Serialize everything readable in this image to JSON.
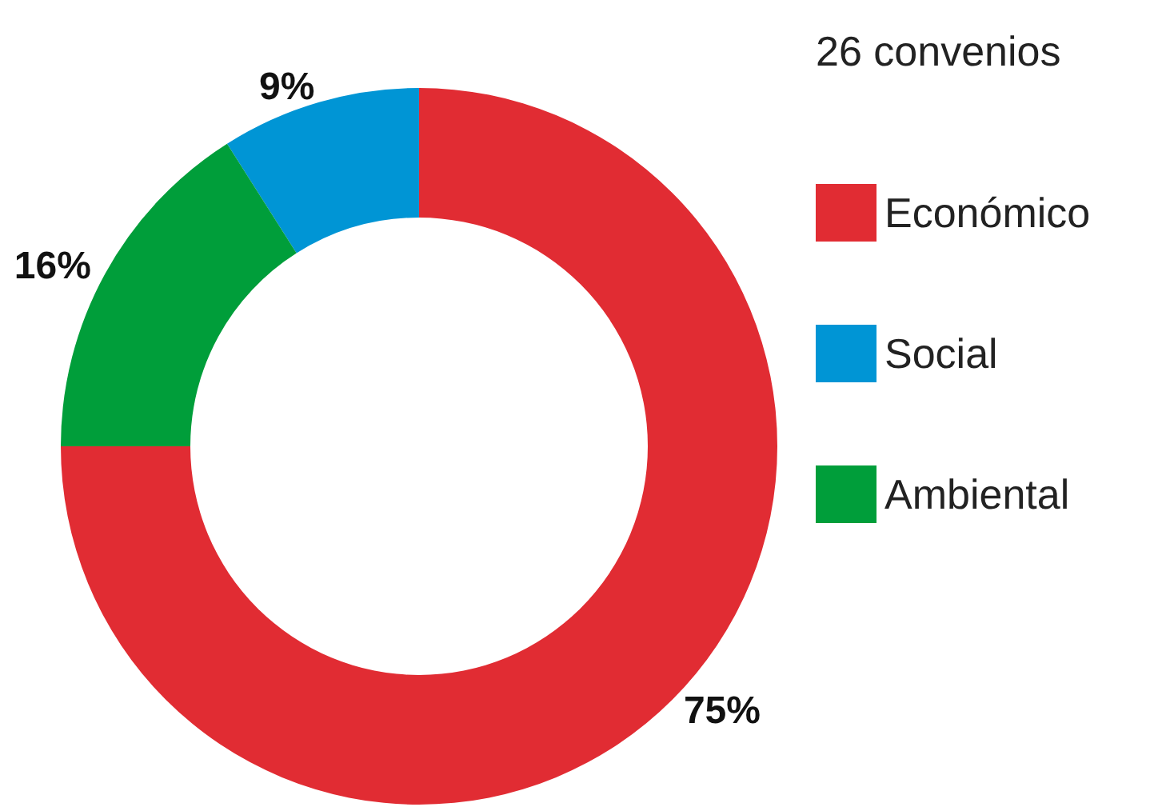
{
  "chart_data": {
    "type": "donut",
    "title": "26 convenios",
    "categories": [
      "Económico",
      "Social",
      "Ambiental"
    ],
    "values": [
      75,
      9,
      16
    ],
    "colors": [
      "#e12c33",
      "#0095d5",
      "#009e3a"
    ],
    "value_labels": [
      "75%",
      "9%",
      "16%"
    ],
    "legend": "right"
  }
}
